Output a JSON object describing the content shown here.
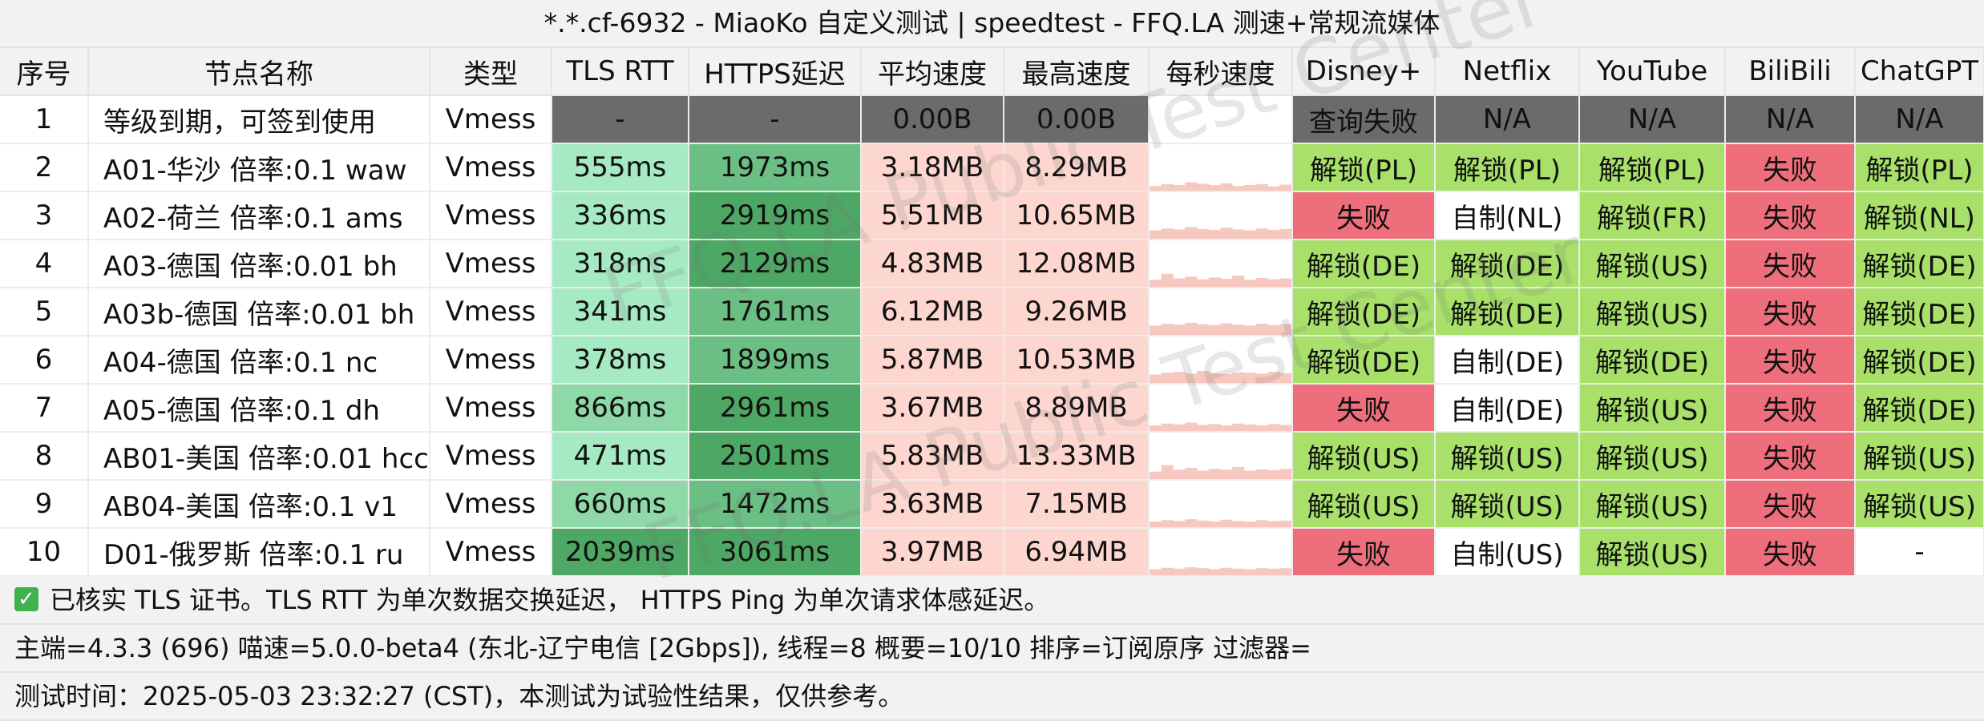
{
  "title": "*.*.cf-6932 - MiaoKo 自定义测试 | speedtest - FFQ.LA 测速+常规流媒体",
  "columns": [
    "序号",
    "节点名称",
    "类型",
    "TLS RTT",
    "HTTPS延迟",
    "平均速度",
    "最高速度",
    "每秒速度",
    "Disney+",
    "Netflix",
    "YouTube",
    "BiliBili",
    "ChatGPT"
  ],
  "colors": {
    "unlock": "#a8e06a",
    "fail": "#ee6f7b",
    "neutral": "#ffffff",
    "na": "#6b6b6b",
    "speed_bg": "#fdd6cf",
    "spark": "#f6c8bf"
  },
  "rows": [
    {
      "idx": "1",
      "name": "等级到期，可签到使用",
      "type": "Vmess",
      "tls": "-",
      "https": "-",
      "avg": "0.00B",
      "max": "0.00B",
      "tls_ms": null,
      "https_ms": null,
      "spark": [],
      "media": [
        {
          "t": "查询失败",
          "s": "na"
        },
        {
          "t": "N/A",
          "s": "na"
        },
        {
          "t": "N/A",
          "s": "na"
        },
        {
          "t": "N/A",
          "s": "na"
        },
        {
          "t": "N/A",
          "s": "na"
        }
      ]
    },
    {
      "idx": "2",
      "name": "A01-华沙 倍率:0.1 waw",
      "type": "Vmess",
      "tls": "555ms",
      "https": "1973ms",
      "avg": "3.18MB",
      "max": "8.29MB",
      "tls_ms": 555,
      "https_ms": 1973,
      "spark": [
        0.1,
        0.14,
        0.12,
        0.18,
        0.15,
        0.12,
        0.16,
        0.1,
        0.12,
        0.14,
        0.09,
        0.13
      ],
      "media": [
        {
          "t": "解锁(PL)",
          "s": "unlock"
        },
        {
          "t": "解锁(PL)",
          "s": "unlock"
        },
        {
          "t": "解锁(PL)",
          "s": "unlock"
        },
        {
          "t": "失败",
          "s": "fail"
        },
        {
          "t": "解锁(PL)",
          "s": "unlock"
        }
      ]
    },
    {
      "idx": "3",
      "name": "A02-荷兰 倍率:0.1 ams",
      "type": "Vmess",
      "tls": "336ms",
      "https": "2919ms",
      "avg": "5.51MB",
      "max": "10.65MB",
      "tls_ms": 336,
      "https_ms": 2919,
      "spark": [
        0.18,
        0.22,
        0.2,
        0.25,
        0.21,
        0.19,
        0.24,
        0.2,
        0.18,
        0.22,
        0.19,
        0.21
      ],
      "media": [
        {
          "t": "失败",
          "s": "fail"
        },
        {
          "t": "自制(NL)",
          "s": "neutral"
        },
        {
          "t": "解锁(FR)",
          "s": "unlock"
        },
        {
          "t": "失败",
          "s": "fail"
        },
        {
          "t": "解锁(NL)",
          "s": "unlock"
        }
      ]
    },
    {
      "idx": "4",
      "name": "A03-德国 倍率:0.01 bh",
      "type": "Vmess",
      "tls": "318ms",
      "https": "2129ms",
      "avg": "4.83MB",
      "max": "12.08MB",
      "tls_ms": 318,
      "https_ms": 2129,
      "spark": [
        0.15,
        0.28,
        0.18,
        0.22,
        0.16,
        0.2,
        0.17,
        0.24,
        0.15,
        0.19,
        0.16,
        0.18
      ],
      "media": [
        {
          "t": "解锁(DE)",
          "s": "unlock"
        },
        {
          "t": "解锁(DE)",
          "s": "unlock"
        },
        {
          "t": "解锁(US)",
          "s": "unlock"
        },
        {
          "t": "失败",
          "s": "fail"
        },
        {
          "t": "解锁(DE)",
          "s": "unlock"
        }
      ]
    },
    {
      "idx": "5",
      "name": "A03b-德国 倍率:0.01 bh",
      "type": "Vmess",
      "tls": "341ms",
      "https": "1761ms",
      "avg": "6.12MB",
      "max": "9.26MB",
      "tls_ms": 341,
      "https_ms": 1761,
      "spark": [
        0.2,
        0.24,
        0.22,
        0.26,
        0.23,
        0.21,
        0.25,
        0.22,
        0.2,
        0.24,
        0.21,
        0.23
      ],
      "media": [
        {
          "t": "解锁(DE)",
          "s": "unlock"
        },
        {
          "t": "解锁(DE)",
          "s": "unlock"
        },
        {
          "t": "解锁(US)",
          "s": "unlock"
        },
        {
          "t": "失败",
          "s": "fail"
        },
        {
          "t": "解锁(DE)",
          "s": "unlock"
        }
      ]
    },
    {
      "idx": "6",
      "name": "A04-德国 倍率:0.1 nc",
      "type": "Vmess",
      "tls": "378ms",
      "https": "1899ms",
      "avg": "5.87MB",
      "max": "10.53MB",
      "tls_ms": 378,
      "https_ms": 1899,
      "spark": [
        0.18,
        0.22,
        0.24,
        0.2,
        0.26,
        0.21,
        0.19,
        0.23,
        0.22,
        0.2,
        0.24,
        0.21
      ],
      "media": [
        {
          "t": "解锁(DE)",
          "s": "unlock"
        },
        {
          "t": "自制(DE)",
          "s": "neutral"
        },
        {
          "t": "解锁(DE)",
          "s": "unlock"
        },
        {
          "t": "失败",
          "s": "fail"
        },
        {
          "t": "解锁(DE)",
          "s": "unlock"
        }
      ]
    },
    {
      "idx": "7",
      "name": "A05-德国 倍率:0.1 dh",
      "type": "Vmess",
      "tls": "866ms",
      "https": "2961ms",
      "avg": "3.67MB",
      "max": "8.89MB",
      "tls_ms": 866,
      "https_ms": 2961,
      "spark": [
        0.12,
        0.16,
        0.14,
        0.18,
        0.13,
        0.15,
        0.12,
        0.16,
        0.14,
        0.12,
        0.15,
        0.13
      ],
      "media": [
        {
          "t": "失败",
          "s": "fail"
        },
        {
          "t": "自制(DE)",
          "s": "neutral"
        },
        {
          "t": "解锁(US)",
          "s": "unlock"
        },
        {
          "t": "失败",
          "s": "fail"
        },
        {
          "t": "解锁(DE)",
          "s": "unlock"
        }
      ]
    },
    {
      "idx": "8",
      "name": "AB01-美国 倍率:0.01 hcc",
      "type": "Vmess",
      "tls": "471ms",
      "https": "2501ms",
      "avg": "5.83MB",
      "max": "13.33MB",
      "tls_ms": 471,
      "https_ms": 2501,
      "spark": [
        0.16,
        0.3,
        0.2,
        0.24,
        0.18,
        0.22,
        0.2,
        0.26,
        0.18,
        0.21,
        0.19,
        0.22
      ],
      "media": [
        {
          "t": "解锁(US)",
          "s": "unlock"
        },
        {
          "t": "解锁(US)",
          "s": "unlock"
        },
        {
          "t": "解锁(US)",
          "s": "unlock"
        },
        {
          "t": "失败",
          "s": "fail"
        },
        {
          "t": "解锁(US)",
          "s": "unlock"
        }
      ]
    },
    {
      "idx": "9",
      "name": "AB04-美国 倍率:0.1 v1",
      "type": "Vmess",
      "tls": "660ms",
      "https": "1472ms",
      "avg": "3.63MB",
      "max": "7.15MB",
      "tls_ms": 660,
      "https_ms": 1472,
      "spark": [
        0.12,
        0.15,
        0.13,
        0.17,
        0.14,
        0.12,
        0.16,
        0.13,
        0.12,
        0.15,
        0.13,
        0.14
      ],
      "media": [
        {
          "t": "解锁(US)",
          "s": "unlock"
        },
        {
          "t": "解锁(US)",
          "s": "unlock"
        },
        {
          "t": "解锁(US)",
          "s": "unlock"
        },
        {
          "t": "失败",
          "s": "fail"
        },
        {
          "t": "解锁(US)",
          "s": "unlock"
        }
      ]
    },
    {
      "idx": "10",
      "name": "D01-俄罗斯 倍率:0.1 ru",
      "type": "Vmess",
      "tls": "2039ms",
      "https": "3061ms",
      "avg": "3.97MB",
      "max": "6.94MB",
      "tls_ms": 2039,
      "https_ms": 3061,
      "spark": [
        0.13,
        0.16,
        0.14,
        0.17,
        0.15,
        0.13,
        0.16,
        0.14,
        0.13,
        0.15,
        0.14,
        0.15
      ],
      "media": [
        {
          "t": "失败",
          "s": "fail"
        },
        {
          "t": "自制(US)",
          "s": "neutral"
        },
        {
          "t": "解锁(US)",
          "s": "unlock"
        },
        {
          "t": "失败",
          "s": "fail"
        },
        {
          "t": "-",
          "s": "neutral"
        }
      ]
    }
  ],
  "footer": {
    "tls_note": "已核实 TLS 证书。TLS RTT 为单次数据交换延迟，   HTTPS Ping 为单次请求体感延迟。",
    "info": "主端=4.3.3 (696) 喵速=5.0.0-beta4 (东北-辽宁电信 [2Gbps]), 线程=8 概要=10/10 排序=订阅原序 过滤器=",
    "time": "测试时间：2025-05-03 23:32:27 (CST)，本测试为试验性结果，仅供参考。"
  },
  "watermark": "FFQ.LA Public Test Center"
}
